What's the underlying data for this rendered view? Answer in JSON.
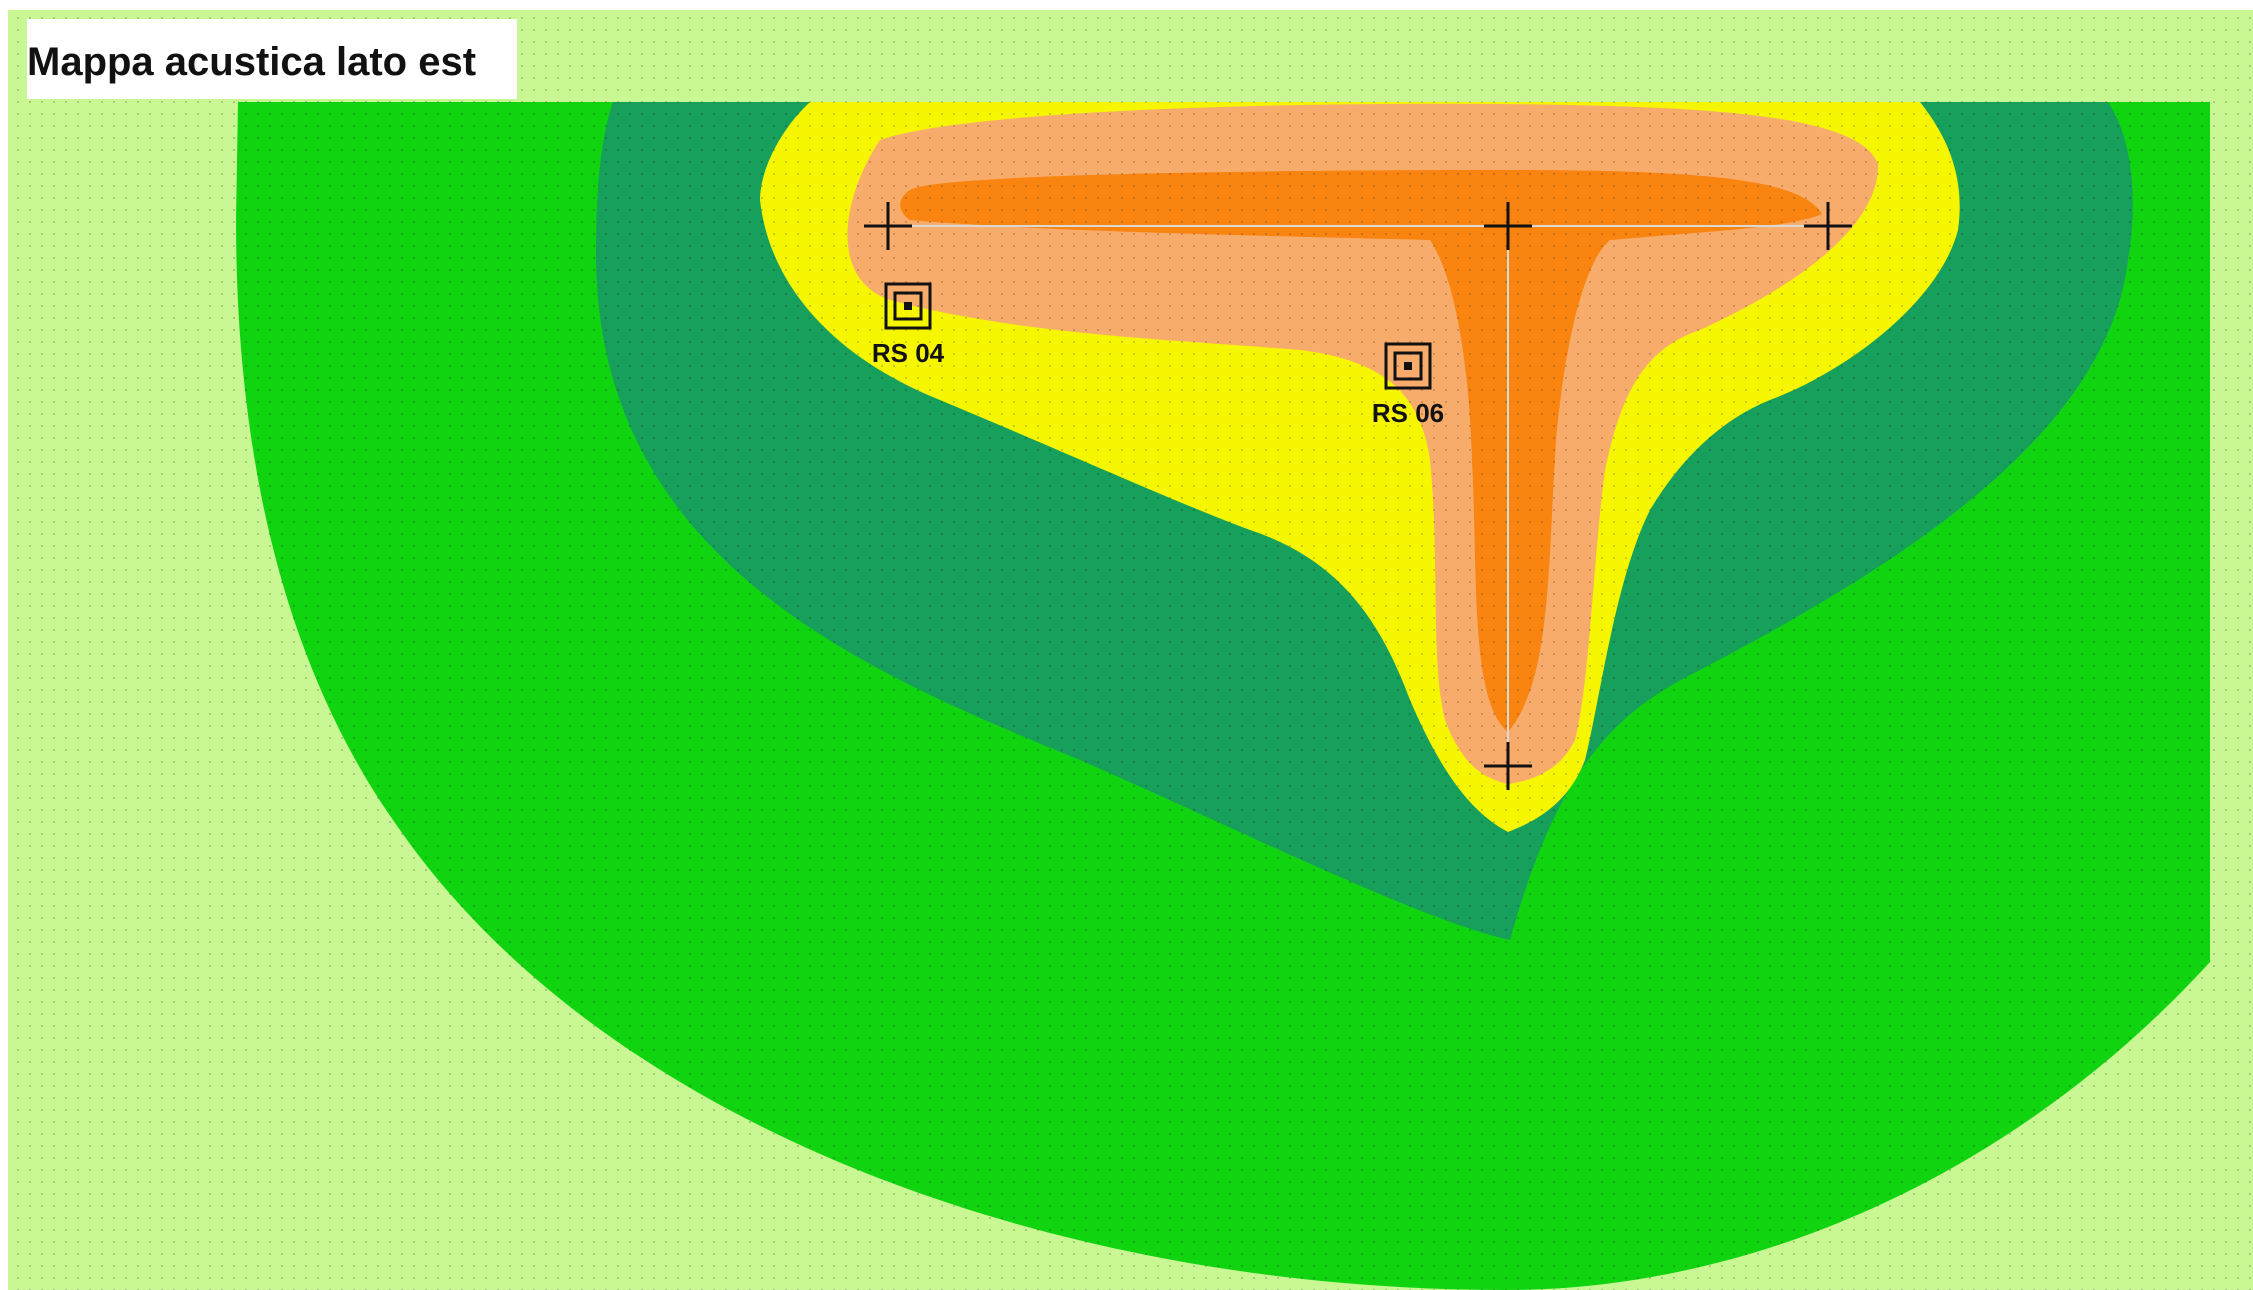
{
  "map": {
    "title": "Mappa acustica lato est",
    "colors": {
      "background": "#c8f794",
      "zone_outer_green": "#11d411",
      "zone_dark_green": "#17a05b",
      "zone_yellow": "#f6f600",
      "zone_light_orange": "#f7ac6b",
      "zone_orange": "#f98410",
      "dot_grid": "#8fc067",
      "marker": "#111111"
    },
    "source_icons": [
      "crosshair-icon",
      "crosshair-icon",
      "crosshair-icon",
      "crosshair-icon"
    ],
    "receiver_icon": "receiver-square-icon",
    "receivers": [
      {
        "label": "RS 04"
      },
      {
        "label": "RS 06"
      }
    ]
  }
}
